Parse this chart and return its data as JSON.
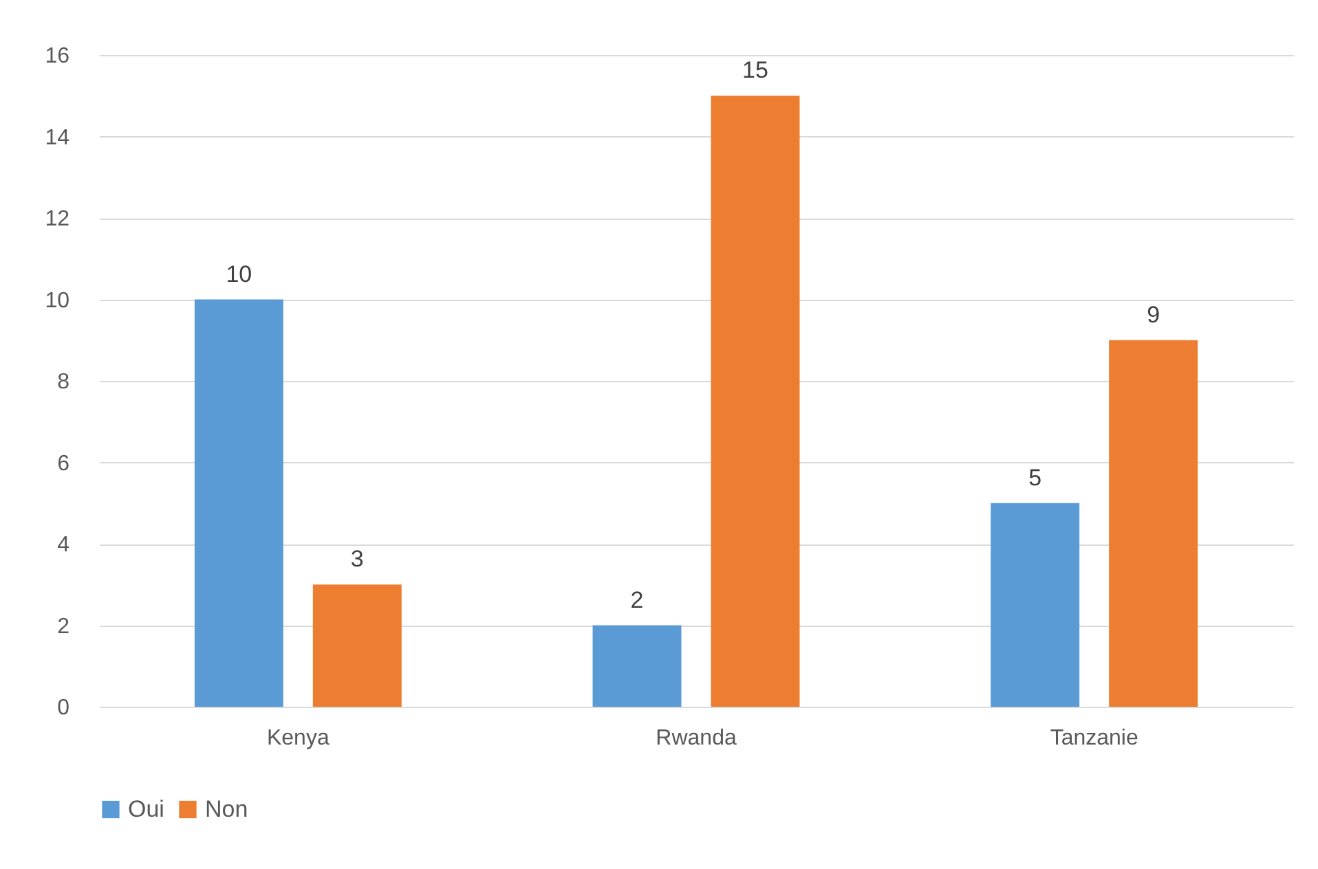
{
  "chart_data": {
    "type": "bar",
    "categories": [
      "Kenya",
      "Rwanda",
      "Tanzanie"
    ],
    "series": [
      {
        "name": "Oui",
        "color": "#5b9bd5",
        "values": [
          10,
          2,
          5
        ]
      },
      {
        "name": "Non",
        "color": "#ed7d31",
        "values": [
          3,
          15,
          9
        ]
      }
    ],
    "ylim": [
      0,
      16
    ],
    "yticks": [
      0,
      2,
      4,
      6,
      8,
      10,
      12,
      14,
      16
    ],
    "grid": "y",
    "legend": "bottom",
    "data_labels": true
  }
}
